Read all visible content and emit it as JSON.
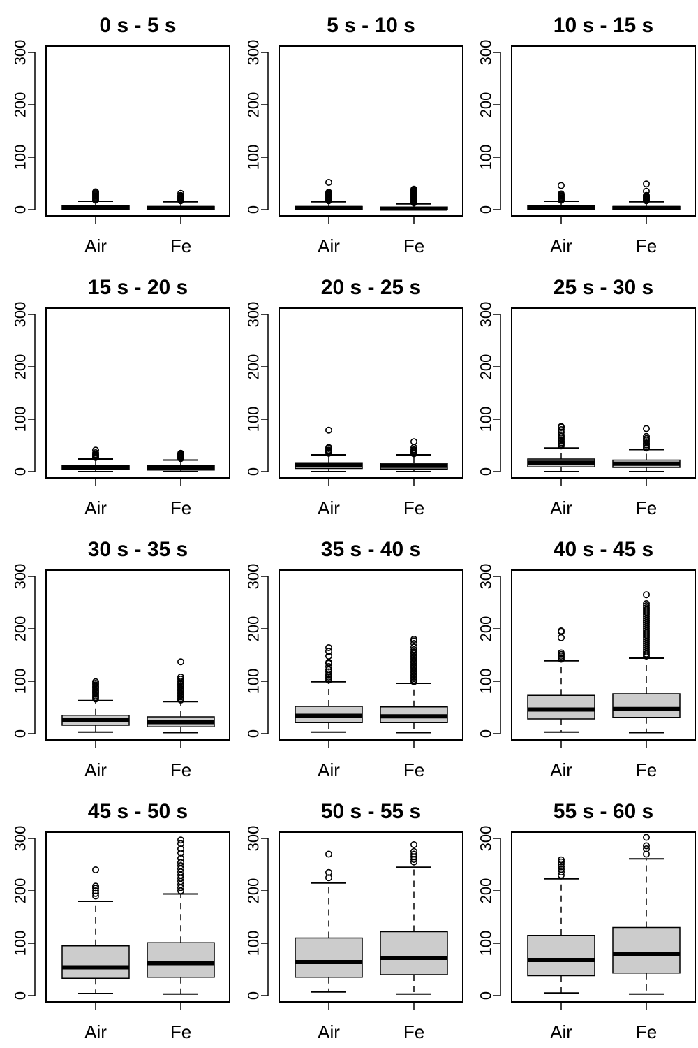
{
  "chart_data": {
    "type": "boxplot",
    "layout": "4x3 grid of panels",
    "categories": [
      "Air",
      "Fe"
    ],
    "y_ticks": [
      0,
      100,
      200,
      300
    ],
    "ylim": [
      -12,
      312
    ],
    "panels": [
      {
        "title": "0 s - 5 s",
        "boxes": [
          {
            "category": "Air",
            "whisker_low": 0,
            "q1": 1,
            "median": 4,
            "q3": 7,
            "whisker_high": 16,
            "outliers": [
              18,
              20,
              22,
              24,
              26,
              28,
              30,
              32,
              34
            ]
          },
          {
            "category": "Fe",
            "whisker_low": 0,
            "q1": 1,
            "median": 3,
            "q3": 6,
            "whisker_high": 15,
            "outliers": [
              17,
              19,
              21,
              23,
              25,
              27,
              31
            ]
          }
        ]
      },
      {
        "title": "5 s - 10 s",
        "boxes": [
          {
            "category": "Air",
            "whisker_low": 0,
            "q1": 1,
            "median": 3,
            "q3": 6,
            "whisker_high": 15,
            "outliers": [
              17,
              19,
              21,
              23,
              25,
              27,
              29,
              31,
              33,
              52
            ]
          },
          {
            "category": "Fe",
            "whisker_low": 0,
            "q1": 1,
            "median": 2,
            "q3": 5,
            "whisker_high": 11,
            "outliers": [
              13,
              15,
              17,
              19,
              21,
              23,
              25,
              27,
              29,
              31,
              33,
              35,
              37,
              39
            ]
          }
        ]
      },
      {
        "title": "10 s - 15 s",
        "boxes": [
          {
            "category": "Air",
            "whisker_low": 0,
            "q1": 1,
            "median": 4,
            "q3": 7,
            "whisker_high": 16,
            "outliers": [
              18,
              20,
              22,
              24,
              26,
              28,
              30,
              46
            ]
          },
          {
            "category": "Fe",
            "whisker_low": 0,
            "q1": 1,
            "median": 3,
            "q3": 6,
            "whisker_high": 15,
            "outliers": [
              17,
              19,
              21,
              23,
              25,
              27,
              35,
              49
            ]
          }
        ]
      },
      {
        "title": "15 s - 20 s",
        "boxes": [
          {
            "category": "Air",
            "whisker_low": 0,
            "q1": 4,
            "median": 8,
            "q3": 12,
            "whisker_high": 24,
            "outliers": [
              27,
              29,
              31,
              33,
              36,
              41
            ]
          },
          {
            "category": "Fe",
            "whisker_low": 0,
            "q1": 3,
            "median": 7,
            "q3": 11,
            "whisker_high": 22,
            "outliers": [
              25,
              27,
              29,
              31,
              33,
              35
            ]
          }
        ]
      },
      {
        "title": "20 s - 25 s",
        "boxes": [
          {
            "category": "Air",
            "whisker_low": 0,
            "q1": 6,
            "median": 12,
            "q3": 17,
            "whisker_high": 32,
            "outliers": [
              35,
              37,
              39,
              41,
              44,
              46,
              79
            ]
          },
          {
            "category": "Fe",
            "whisker_low": 0,
            "q1": 5,
            "median": 11,
            "q3": 16,
            "whisker_high": 32,
            "outliers": [
              34,
              36,
              38,
              40,
              42,
              46,
              57
            ]
          }
        ]
      },
      {
        "title": "25 s - 30 s",
        "boxes": [
          {
            "category": "Air",
            "whisker_low": 0,
            "q1": 9,
            "median": 17,
            "q3": 24,
            "whisker_high": 45,
            "outliers": [
              49,
              52,
              55,
              58,
              61,
              64,
              67,
              70,
              75,
              80,
              84,
              86
            ]
          },
          {
            "category": "Fe",
            "whisker_low": 0,
            "q1": 8,
            "median": 15,
            "q3": 22,
            "whisker_high": 42,
            "outliers": [
              45,
              48,
              51,
              54,
              57,
              60,
              63,
              67,
              82
            ]
          }
        ]
      },
      {
        "title": "30 s - 35 s",
        "boxes": [
          {
            "category": "Air",
            "whisker_low": 3,
            "q1": 16,
            "median": 26,
            "q3": 35,
            "whisker_high": 63,
            "outliers": [
              66,
              69,
              72,
              75,
              78,
              81,
              84,
              87,
              90,
              93,
              96,
              99
            ]
          },
          {
            "category": "Fe",
            "whisker_low": 2,
            "q1": 13,
            "median": 22,
            "q3": 32,
            "whisker_high": 61,
            "outliers": [
              64,
              67,
              70,
              73,
              76,
              79,
              82,
              85,
              88,
              91,
              94,
              97,
              100,
              104,
              108,
              137
            ]
          }
        ]
      },
      {
        "title": "35 s - 40 s",
        "boxes": [
          {
            "category": "Air",
            "whisker_low": 3,
            "q1": 21,
            "median": 34,
            "q3": 52,
            "whisker_high": 99,
            "outliers": [
              102,
              105,
              108,
              111,
              114,
              118,
              122,
              128,
              134,
              136,
              148,
              157,
              164
            ]
          },
          {
            "category": "Fe",
            "whisker_low": 2,
            "q1": 21,
            "median": 33,
            "q3": 51,
            "whisker_high": 96,
            "outliers": [
              99,
              102,
              105,
              108,
              111,
              114,
              117,
              120,
              123,
              126,
              129,
              132,
              135,
              138,
              141,
              144,
              147,
              150,
              153,
              156,
              160,
              165,
              172,
              177,
              180
            ]
          }
        ]
      },
      {
        "title": "40 s - 45 s",
        "boxes": [
          {
            "category": "Air",
            "whisker_low": 3,
            "q1": 28,
            "median": 46,
            "q3": 73,
            "whisker_high": 139,
            "outliers": [
              142,
              145,
              148,
              151,
              154,
              183,
              194,
              196
            ]
          },
          {
            "category": "Fe",
            "whisker_low": 2,
            "q1": 31,
            "median": 47,
            "q3": 76,
            "whisker_high": 144,
            "outliers": [
              148,
              152,
              156,
              160,
              164,
              168,
              172,
              176,
              180,
              184,
              188,
              192,
              196,
              200,
              204,
              208,
              212,
              216,
              220,
              224,
              228,
              232,
              236,
              240,
              244,
              248,
              265
            ]
          }
        ]
      },
      {
        "title": "45 s - 50 s",
        "boxes": [
          {
            "category": "Air",
            "whisker_low": 4,
            "q1": 33,
            "median": 54,
            "q3": 95,
            "whisker_high": 180,
            "outliers": [
              190,
              195,
              200,
              205,
              209,
              240
            ]
          },
          {
            "category": "Fe",
            "whisker_low": 3,
            "q1": 35,
            "median": 62,
            "q3": 101,
            "whisker_high": 194,
            "outliers": [
              200,
              206,
              212,
              218,
              224,
              230,
              236,
              242,
              248,
              254,
              262,
              272,
              280,
              290,
              297
            ]
          }
        ]
      },
      {
        "title": "50 s - 55 s",
        "boxes": [
          {
            "category": "Air",
            "whisker_low": 7,
            "q1": 35,
            "median": 64,
            "q3": 110,
            "whisker_high": 215,
            "outliers": [
              225,
              235,
              270
            ]
          },
          {
            "category": "Fe",
            "whisker_low": 3,
            "q1": 40,
            "median": 72,
            "q3": 122,
            "whisker_high": 245,
            "outliers": [
              255,
              260,
              265,
              270,
              275,
              288
            ]
          }
        ]
      },
      {
        "title": "55 s - 60 s",
        "boxes": [
          {
            "category": "Air",
            "whisker_low": 5,
            "q1": 38,
            "median": 68,
            "q3": 115,
            "whisker_high": 223,
            "outliers": [
              230,
              236,
              241,
              246,
              251,
              255,
              259
            ]
          },
          {
            "category": "Fe",
            "whisker_low": 3,
            "q1": 43,
            "median": 79,
            "q3": 130,
            "whisker_high": 261,
            "outliers": [
              270,
              280,
              286,
              302
            ]
          }
        ]
      }
    ]
  }
}
